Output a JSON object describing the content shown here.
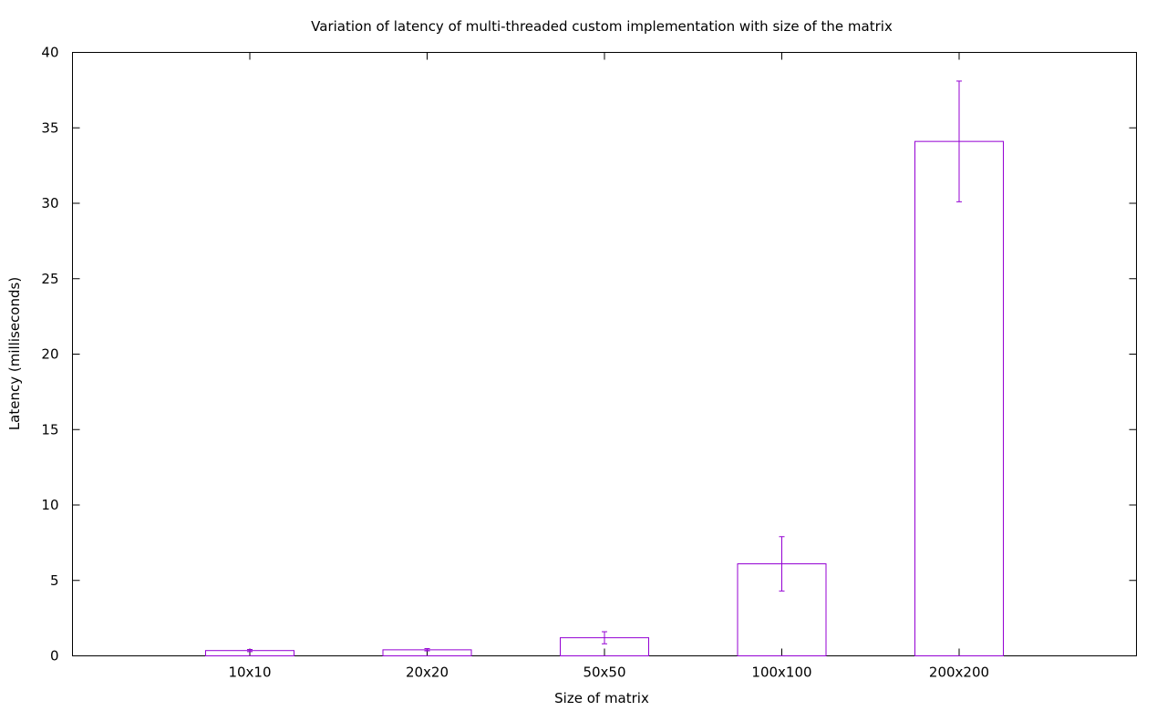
{
  "chart_data": {
    "type": "bar",
    "title": "Variation of latency of multi-threaded custom implementation with size of the matrix",
    "xlabel": "Size of matrix",
    "ylabel": "Latency (milliseconds)",
    "categories": [
      "10x10",
      "20x20",
      "50x50",
      "100x100",
      "200x200"
    ],
    "values": [
      0.35,
      0.4,
      1.2,
      6.1,
      34.1
    ],
    "error_low": [
      0.28,
      0.33,
      0.8,
      4.3,
      30.1
    ],
    "error_high": [
      0.42,
      0.48,
      1.6,
      7.9,
      38.1
    ],
    "ylim": [
      0,
      40
    ],
    "yticks": [
      0,
      5,
      10,
      15,
      20,
      25,
      30,
      35,
      40
    ],
    "grid": false,
    "legend": "none",
    "colors": {
      "bar": "#9400d3",
      "axis": "#000000"
    }
  }
}
